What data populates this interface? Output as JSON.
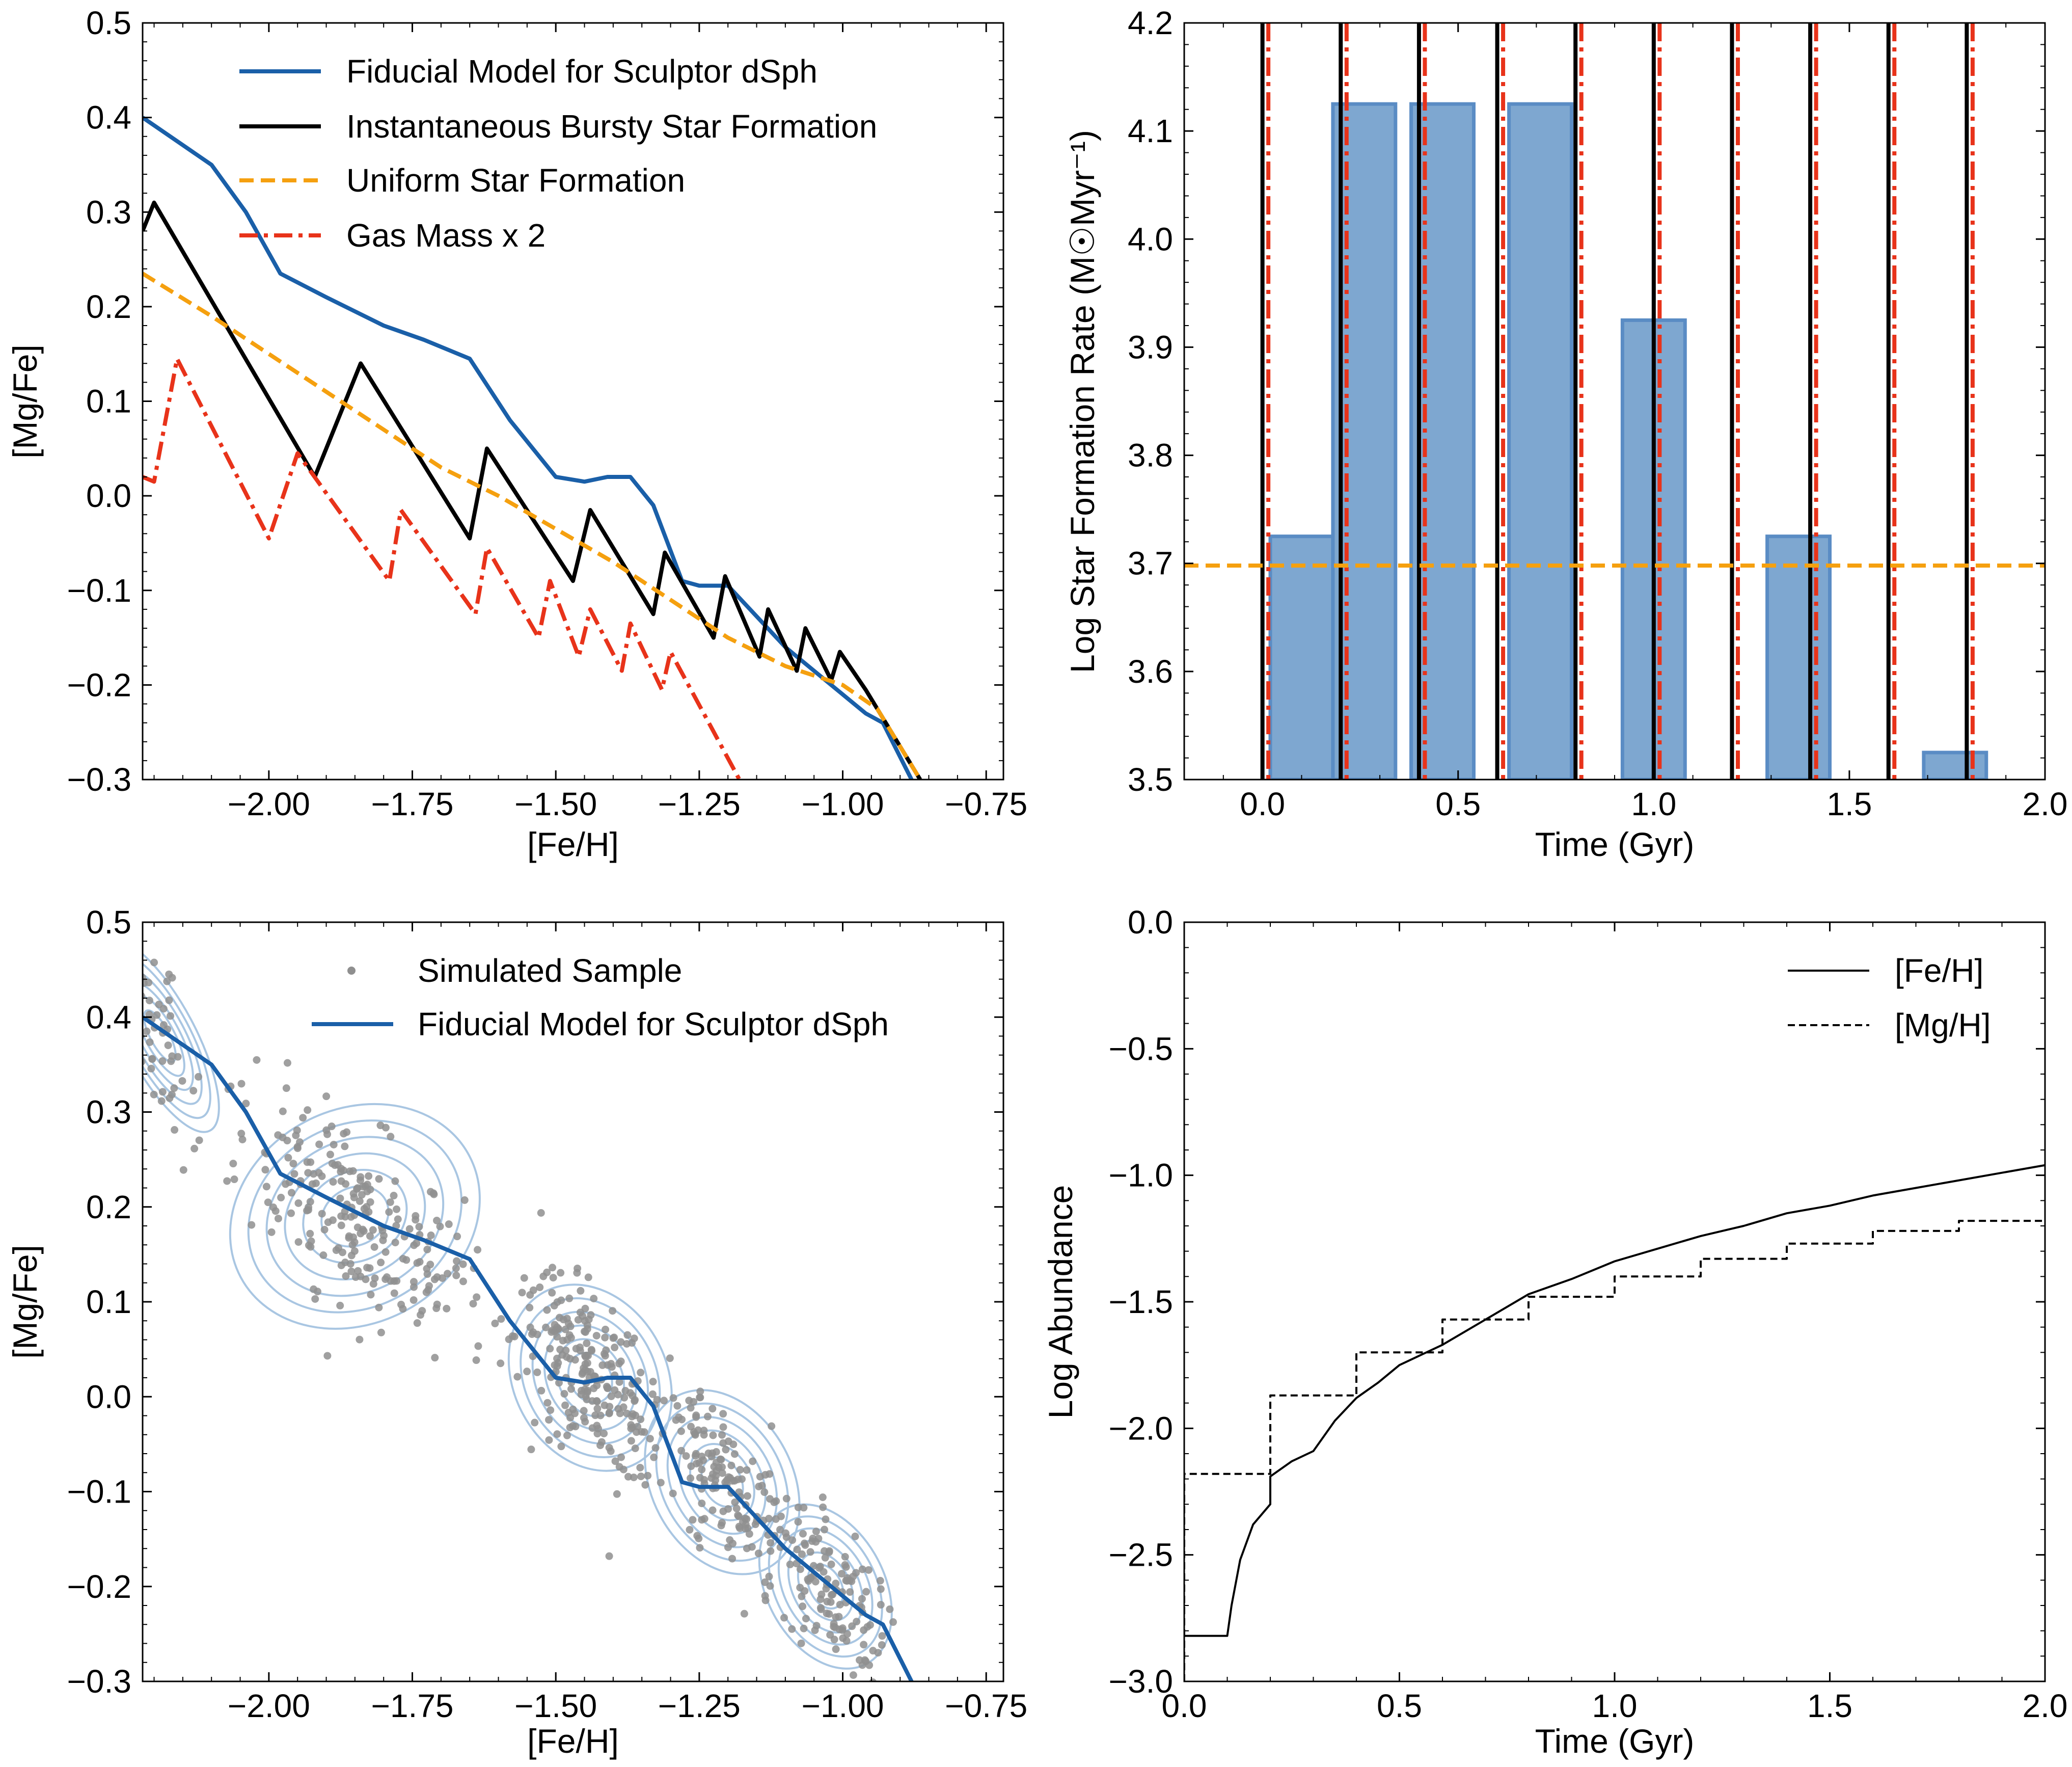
{
  "chart_data": [
    {
      "id": "top-left",
      "type": "line",
      "xlabel": "[Fe/H]",
      "ylabel": "[Mg/Fe]",
      "xlim": [
        -2.22,
        -0.72
      ],
      "ylim": [
        -0.3,
        0.5
      ],
      "xticks": [
        -2.0,
        -1.75,
        -1.5,
        -1.25,
        -1.0,
        -0.75
      ],
      "xtick_labels": [
        "−2.00",
        "−1.75",
        "−1.50",
        "−1.25",
        "−1.00",
        "−0.75"
      ],
      "yticks": [
        -0.3,
        -0.2,
        -0.1,
        0.0,
        0.1,
        0.2,
        0.3,
        0.4,
        0.5
      ],
      "ytick_labels": [
        "−0.3",
        "−0.2",
        "−0.1",
        "0.0",
        "0.1",
        "0.2",
        "0.3",
        "0.4",
        "0.5"
      ],
      "legend_position": "top-right",
      "series": [
        {
          "name": "Fiducial Model for Sculptor dSph",
          "color": "#1a5fa8",
          "style": "solid",
          "x": [
            -2.22,
            -2.1,
            -2.04,
            -1.98,
            -1.9,
            -1.8,
            -1.73,
            -1.65,
            -1.58,
            -1.5,
            -1.45,
            -1.41,
            -1.37,
            -1.33,
            -1.28,
            -1.25,
            -1.2,
            -1.1,
            -1.02,
            -0.96,
            -0.93,
            -0.88
          ],
          "y": [
            0.4,
            0.35,
            0.3,
            0.235,
            0.21,
            0.18,
            0.165,
            0.145,
            0.08,
            0.02,
            0.015,
            0.02,
            0.02,
            -0.01,
            -0.09,
            -0.095,
            -0.095,
            -0.16,
            -0.2,
            -0.23,
            -0.24,
            -0.3
          ]
        },
        {
          "name": "Instantaneous Bursty Star Formation",
          "color": "#000000",
          "style": "solid",
          "x": [
            -2.22,
            -2.2,
            -1.92,
            -1.84,
            -1.65,
            -1.62,
            -1.47,
            -1.44,
            -1.33,
            -1.31,
            -1.225,
            -1.205,
            -1.145,
            -1.13,
            -1.08,
            -1.065,
            -1.02,
            -1.005,
            -0.96,
            -0.865
          ],
          "y": [
            0.28,
            0.31,
            0.02,
            0.14,
            -0.045,
            0.05,
            -0.09,
            -0.015,
            -0.125,
            -0.06,
            -0.15,
            -0.085,
            -0.17,
            -0.12,
            -0.185,
            -0.14,
            -0.195,
            -0.165,
            -0.205,
            -0.3
          ]
        },
        {
          "name": "Uniform Star Formation",
          "color": "#f5a00f",
          "style": "dashed",
          "x": [
            -2.22,
            -2.1,
            -2.0,
            -1.9,
            -1.8,
            -1.7,
            -1.6,
            -1.5,
            -1.4,
            -1.3,
            -1.2,
            -1.1,
            -1.0,
            -0.94,
            -0.865
          ],
          "y": [
            0.235,
            0.19,
            0.15,
            0.11,
            0.07,
            0.03,
            0.0,
            -0.035,
            -0.07,
            -0.11,
            -0.15,
            -0.18,
            -0.2,
            -0.225,
            -0.3
          ]
        },
        {
          "name": "Gas Mass x 2",
          "color": "#e8331a",
          "style": "dashdot",
          "x": [
            -2.22,
            -2.2,
            -2.16,
            -2.0,
            -1.95,
            -1.79,
            -1.77,
            -1.64,
            -1.62,
            -1.53,
            -1.51,
            -1.46,
            -1.44,
            -1.385,
            -1.37,
            -1.315,
            -1.3,
            -1.18
          ],
          "y": [
            0.02,
            0.015,
            0.145,
            -0.045,
            0.045,
            -0.09,
            -0.015,
            -0.125,
            -0.055,
            -0.15,
            -0.09,
            -0.17,
            -0.12,
            -0.185,
            -0.135,
            -0.205,
            -0.165,
            -0.3
          ]
        }
      ]
    },
    {
      "id": "top-right",
      "type": "bar",
      "xlabel": "Time (Gyr)",
      "ylabel": "Log Star Formation Rate (M☉Myr⁻¹)",
      "xlim": [
        -0.2,
        2.0
      ],
      "ylim": [
        3.5,
        4.2
      ],
      "xticks": [
        0.0,
        0.5,
        1.0,
        1.5,
        2.0
      ],
      "xtick_labels": [
        "0.0",
        "0.5",
        "1.0",
        "1.5",
        "2.0"
      ],
      "yticks": [
        3.5,
        3.6,
        3.7,
        3.8,
        3.9,
        4.0,
        4.1,
        4.2
      ],
      "ytick_labels": [
        "3.5",
        "3.6",
        "3.7",
        "3.8",
        "3.9",
        "4.0",
        "4.1",
        "4.2"
      ],
      "bars": [
        {
          "x0": 0.02,
          "x1": 0.18,
          "value": 3.725
        },
        {
          "x0": 0.18,
          "x1": 0.34,
          "value": 4.125
        },
        {
          "x0": 0.38,
          "x1": 0.54,
          "value": 4.125
        },
        {
          "x0": 0.63,
          "x1": 0.79,
          "value": 4.125
        },
        {
          "x0": 0.92,
          "x1": 1.08,
          "value": 3.925
        },
        {
          "x0": 1.29,
          "x1": 1.45,
          "value": 3.725
        },
        {
          "x0": 1.69,
          "x1": 1.85,
          "value": 3.525
        }
      ],
      "bar_color": "#7ea7d0",
      "bar_edge": "#5a8cc4",
      "burst_times_black": [
        0.0,
        0.2,
        0.4,
        0.6,
        0.8,
        1.0,
        1.2,
        1.4,
        1.6,
        1.8
      ],
      "burst_times_red": [
        0.015,
        0.215,
        0.415,
        0.615,
        0.815,
        1.015,
        1.215,
        1.415,
        1.615,
        1.815
      ],
      "uniform_level": 3.698,
      "colors": {
        "black": "#000000",
        "red": "#e8331a",
        "orange": "#f5a00f"
      }
    },
    {
      "id": "bottom-left",
      "type": "scatter",
      "xlabel": "[Fe/H]",
      "ylabel": "[Mg/Fe]",
      "xlim": [
        -2.22,
        -0.72
      ],
      "ylim": [
        -0.3,
        0.5
      ],
      "xticks": [
        -2.0,
        -1.75,
        -1.5,
        -1.25,
        -1.0,
        -0.75
      ],
      "xtick_labels": [
        "−2.00",
        "−1.75",
        "−1.50",
        "−1.25",
        "−1.00",
        "−0.75"
      ],
      "yticks": [
        -0.3,
        -0.2,
        -0.1,
        0.0,
        0.1,
        0.2,
        0.3,
        0.4,
        0.5
      ],
      "ytick_labels": [
        "−0.3",
        "−0.2",
        "−0.1",
        "0.0",
        "0.1",
        "0.2",
        "0.3",
        "0.4",
        "0.5"
      ],
      "legend_position": "top-right",
      "legend": [
        "Simulated Sample",
        "Fiducial Model for Sculptor dSph"
      ],
      "point_color": "#8f8f8f",
      "contour_color": "#a9c6e2",
      "line_color": "#1a5fa8",
      "clusters": [
        {
          "cx": -2.19,
          "cy": 0.38,
          "sx": 0.03,
          "sy": 0.055,
          "n": 55
        },
        {
          "cx": -1.85,
          "cy": 0.19,
          "sx": 0.11,
          "sy": 0.055,
          "n": 240
        },
        {
          "cx": -1.44,
          "cy": 0.02,
          "sx": 0.065,
          "sy": 0.05,
          "n": 230
        },
        {
          "cx": -1.21,
          "cy": -0.09,
          "sx": 0.06,
          "sy": 0.05,
          "n": 150
        },
        {
          "cx": -1.03,
          "cy": -0.2,
          "sx": 0.05,
          "sy": 0.045,
          "n": 130
        }
      ],
      "contour_scales": [
        0.55,
        0.85,
        1.15,
        1.45,
        1.75,
        2.05
      ],
      "fiducial": {
        "x": [
          -2.22,
          -2.1,
          -2.04,
          -1.98,
          -1.9,
          -1.8,
          -1.73,
          -1.65,
          -1.58,
          -1.5,
          -1.45,
          -1.41,
          -1.37,
          -1.33,
          -1.28,
          -1.25,
          -1.2,
          -1.1,
          -1.02,
          -0.96,
          -0.93,
          -0.88
        ],
        "y": [
          0.4,
          0.35,
          0.3,
          0.235,
          0.21,
          0.18,
          0.165,
          0.145,
          0.08,
          0.02,
          0.015,
          0.02,
          0.02,
          -0.01,
          -0.09,
          -0.095,
          -0.095,
          -0.16,
          -0.2,
          -0.23,
          -0.24,
          -0.3
        ]
      }
    },
    {
      "id": "bottom-right",
      "type": "line",
      "xlabel": "Time (Gyr)",
      "ylabel": "Log Abundance",
      "xlim": [
        0.0,
        2.0
      ],
      "ylim": [
        -3.0,
        0.0
      ],
      "xticks": [
        0.0,
        0.5,
        1.0,
        1.5,
        2.0
      ],
      "xtick_labels": [
        "0.0",
        "0.5",
        "1.0",
        "1.5",
        "2.0"
      ],
      "yticks": [
        -3.0,
        -2.5,
        -2.0,
        -1.5,
        -1.0,
        -0.5,
        0.0
      ],
      "ytick_labels": [
        "−3.0",
        "−2.5",
        "−2.0",
        "−1.5",
        "−1.0",
        "−0.5",
        "0.0"
      ],
      "legend_position": "top-right",
      "series": [
        {
          "name": "[Fe/H]",
          "color": "#000000",
          "style": "solid",
          "x": [
            0.0,
            0.1,
            0.11,
            0.13,
            0.16,
            0.2,
            0.2,
            0.25,
            0.3,
            0.35,
            0.4,
            0.45,
            0.5,
            0.6,
            0.7,
            0.8,
            0.9,
            1.0,
            1.1,
            1.2,
            1.3,
            1.4,
            1.5,
            1.6,
            1.7,
            1.8,
            1.9,
            2.0
          ],
          "y": [
            -2.82,
            -2.82,
            -2.7,
            -2.52,
            -2.38,
            -2.3,
            -2.19,
            -2.13,
            -2.09,
            -1.97,
            -1.88,
            -1.82,
            -1.75,
            -1.67,
            -1.57,
            -1.47,
            -1.41,
            -1.34,
            -1.29,
            -1.24,
            -1.2,
            -1.15,
            -1.12,
            -1.08,
            -1.05,
            -1.02,
            -0.99,
            -0.96
          ]
        },
        {
          "name": "[Mg/H]",
          "color": "#000000",
          "style": "dashed",
          "steps": [
            {
              "t": 0.0,
              "v": -2.18
            },
            {
              "t": 0.2,
              "v": -1.87
            },
            {
              "t": 0.4,
              "v": -1.7
            },
            {
              "t": 0.6,
              "v": -1.57
            },
            {
              "t": 0.8,
              "v": -1.48
            },
            {
              "t": 1.0,
              "v": -1.4
            },
            {
              "t": 1.2,
              "v": -1.33
            },
            {
              "t": 1.4,
              "v": -1.27
            },
            {
              "t": 1.6,
              "v": -1.22
            },
            {
              "t": 1.8,
              "v": -1.18
            }
          ],
          "end_t": 2.0,
          "start_v": -3.0
        }
      ]
    }
  ]
}
